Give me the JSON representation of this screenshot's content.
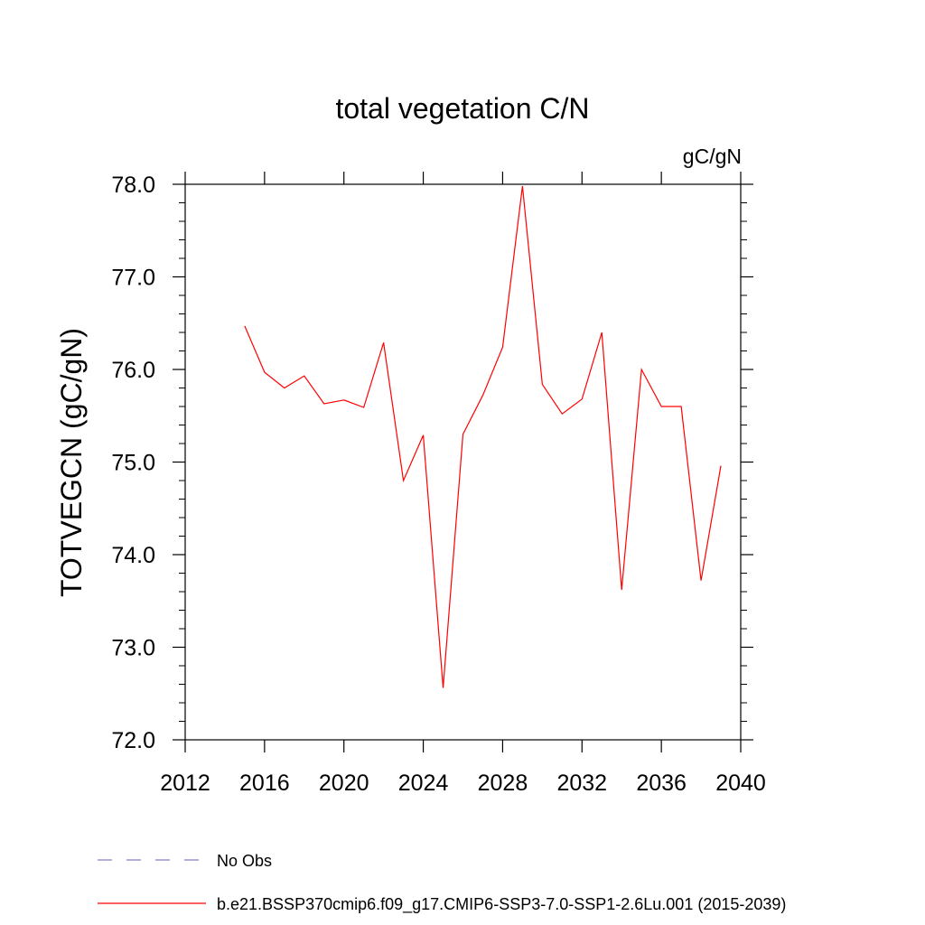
{
  "chart_data": {
    "type": "line",
    "title": "total vegetation C/N",
    "units": "gC/gN",
    "ylabel": "TOTVEGCN  (gC/gN)",
    "xlabel": "",
    "xlim": [
      2012,
      2040
    ],
    "ylim": [
      72.0,
      78.0
    ],
    "x_ticks": [
      "2012",
      "2016",
      "2020",
      "2024",
      "2028",
      "2032",
      "2036",
      "2040"
    ],
    "y_ticks": [
      "72.0",
      "73.0",
      "74.0",
      "75.0",
      "76.0",
      "77.0",
      "78.0"
    ],
    "grid": false,
    "legend_position": "bottom-left",
    "series": [
      {
        "name": "b.e21.BSSP370cmip6.f09_g17.CMIP6-SSP3-7.0-SSP1-2.6Lu.001 (2015-2039)",
        "color": "#ff0000",
        "line_style": "solid",
        "x": [
          2015,
          2016,
          2017,
          2018,
          2019,
          2020,
          2021,
          2022,
          2023,
          2024,
          2025,
          2026,
          2027,
          2028,
          2029,
          2030,
          2031,
          2032,
          2033,
          2034,
          2035,
          2036,
          2037,
          2038,
          2039
        ],
        "values": [
          76.47,
          75.97,
          75.8,
          75.93,
          75.63,
          75.67,
          75.59,
          76.29,
          74.8,
          75.29,
          72.56,
          75.3,
          75.72,
          76.24,
          77.98,
          75.84,
          75.52,
          75.68,
          76.4,
          73.62,
          76.0,
          75.6,
          75.6,
          73.72,
          74.96
        ]
      }
    ],
    "legend": [
      {
        "label": "No Obs",
        "color": "#8080c0",
        "line_style": "dashed"
      },
      {
        "label": "b.e21.BSSP370cmip6.f09_g17.CMIP6-SSP3-7.0-SSP1-2.6Lu.001 (2015-2039)",
        "color": "#ff0000",
        "line_style": "solid"
      }
    ]
  }
}
